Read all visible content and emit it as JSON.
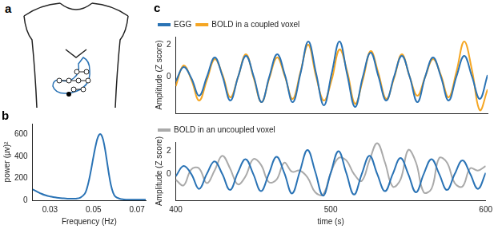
{
  "diagram": {
    "label": "a"
  },
  "chart_data": [
    {
      "type": "line",
      "title": "b",
      "x_label": "Frequency (Hz)",
      "y_label": "power (µv)²",
      "x": [
        0.022,
        0.024,
        0.026,
        0.028,
        0.03,
        0.032,
        0.034,
        0.036,
        0.038,
        0.04,
        0.042,
        0.044,
        0.046,
        0.047,
        0.048,
        0.049,
        0.05,
        0.051,
        0.052,
        0.053,
        0.054,
        0.055,
        0.056,
        0.057,
        0.058,
        0.059,
        0.06,
        0.062,
        0.064,
        0.066,
        0.068,
        0.07,
        0.072,
        0.074
      ],
      "series": [
        {
          "color": "#2a73b5",
          "values": [
            100,
            80,
            60,
            45,
            35,
            28,
            22,
            18,
            15,
            14,
            15,
            25,
            60,
            110,
            190,
            290,
            400,
            500,
            575,
            605,
            580,
            500,
            380,
            250,
            140,
            70,
            35,
            15,
            8,
            5,
            5,
            5,
            5,
            5
          ]
        }
      ],
      "xlim": [
        0.022,
        0.074
      ],
      "xticks": [
        0.03,
        0.05,
        0.07
      ],
      "ylim": [
        0,
        700
      ],
      "yticks": [
        0,
        200,
        400,
        600
      ],
      "grid": false
    },
    {
      "type": "line",
      "title": "c",
      "y_label": "Amplitude (Z score)",
      "legend": "top-left",
      "tick_labels": "y",
      "x": [
        400,
        405,
        410,
        415,
        420,
        425,
        430,
        435,
        440,
        445,
        450,
        455,
        460,
        465,
        470,
        475,
        480,
        485,
        490,
        495,
        500,
        505,
        510,
        515,
        520,
        525,
        530,
        535,
        540,
        545,
        550,
        555,
        560,
        565,
        570,
        575,
        580,
        585,
        590,
        595,
        600
      ],
      "series": [
        {
          "name": "EGG",
          "color": "#2a73b5",
          "values": [
            -0.3,
            0.6,
            -0.1,
            -1.2,
            0,
            1.2,
            0,
            -1.5,
            0,
            1.3,
            0,
            -1.6,
            0,
            1.4,
            0.1,
            -1.6,
            0.2,
            2.2,
            0.2,
            -1.8,
            0.2,
            2.2,
            0.1,
            -1.9,
            0,
            1.5,
            0,
            -1.5,
            0,
            1.3,
            0,
            -1.6,
            0,
            1.2,
            0,
            -1.5,
            0,
            1.3,
            0,
            -1.4,
            0.1
          ]
        },
        {
          "name": "BOLD in a coupled voxel",
          "color": "#f5a623",
          "values": [
            -0.6,
            0.7,
            -0.2,
            -1.5,
            -0.2,
            1.1,
            0.1,
            -1.3,
            0,
            1.4,
            -0.1,
            -1.6,
            -0.1,
            1.2,
            0,
            -1.4,
            0.3,
            2.0,
            0,
            -1.5,
            -0.2,
            1.7,
            0.3,
            -1.7,
            -0.2,
            1.6,
            0.2,
            -1.4,
            -0.1,
            1.4,
            0,
            -1.2,
            0,
            1.1,
            0.1,
            -1.3,
            0.3,
            2.2,
            0.4,
            -2.1,
            -0.8
          ]
        }
      ],
      "xlim": [
        400,
        600
      ],
      "xticks": [
        400,
        500,
        600
      ],
      "ylim": [
        -2.3,
        2.5
      ],
      "yticks": [
        0,
        2
      ],
      "grid": false
    },
    {
      "type": "line",
      "x_label": "time (s)",
      "y_label": "Amplitude (Z score)",
      "legend": "top-left",
      "x": [
        400,
        405,
        410,
        415,
        420,
        425,
        430,
        435,
        440,
        445,
        450,
        455,
        460,
        465,
        470,
        475,
        480,
        485,
        490,
        495,
        500,
        505,
        510,
        515,
        520,
        525,
        530,
        535,
        540,
        545,
        550,
        555,
        560,
        565,
        570,
        575,
        580,
        585,
        590,
        595,
        600
      ],
      "series": [
        {
          "color": "#2a73b5",
          "values": [
            -0.2,
            0.7,
            0,
            -1.3,
            0,
            1.1,
            0,
            -1.4,
            0.1,
            1.3,
            0,
            -1.5,
            0,
            1.5,
            0.1,
            -1.7,
            0.2,
            2.1,
            0.2,
            -1.9,
            0.1,
            2.0,
            0.1,
            -1.8,
            0,
            1.6,
            0,
            -1.5,
            0,
            1.4,
            0,
            -1.6,
            0,
            1.3,
            0,
            -1.4,
            0,
            1.2,
            0,
            -1.3,
            0.1
          ]
        },
        {
          "name": "BOLD in an uncoupled voxel",
          "color": "#aaaaaa",
          "values": [
            -0.5,
            -1.0,
            0.4,
            0.5,
            -0.8,
            0.3,
            1.6,
            0.5,
            -0.9,
            -0.2,
            1.3,
            0.8,
            -0.7,
            -0.5,
            1.0,
            0.2,
            0.3,
            -0.3,
            -1.6,
            -1.8,
            0.1,
            1.4,
            1.2,
            0,
            -0.6,
            1.2,
            2.7,
            1.0,
            -1.1,
            -0.5,
            2.1,
            1.0,
            -1.6,
            -1.3,
            1.4,
            1.0,
            -0.8,
            -1.1,
            0.5,
            0.3,
            0.7
          ]
        }
      ],
      "xlim": [
        400,
        600
      ],
      "xticks": [
        400,
        500,
        600
      ],
      "ylim": [
        -2.3,
        2.8
      ],
      "yticks": [
        0,
        2
      ],
      "grid": false
    }
  ]
}
